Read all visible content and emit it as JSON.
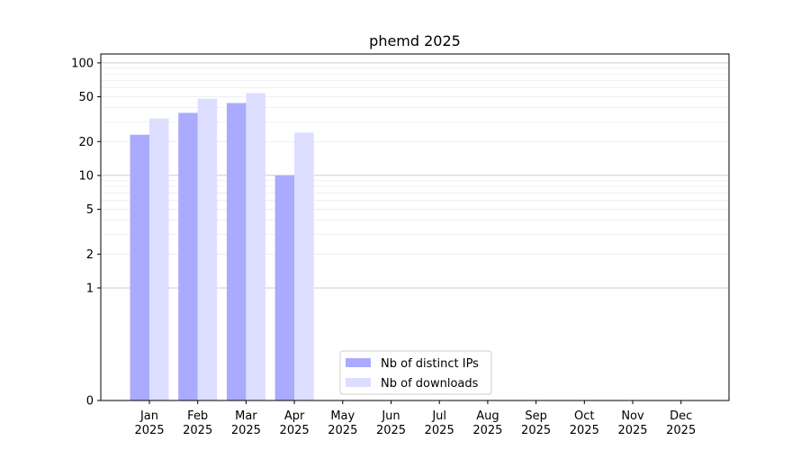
{
  "chart_data": {
    "type": "bar",
    "title": "phemd 2025",
    "xlabel": "",
    "ylabel": "",
    "yscale": "symlog",
    "ylim": [
      0,
      120
    ],
    "yticks": [
      0,
      1,
      2,
      5,
      10,
      20,
      50,
      100
    ],
    "categories": [
      {
        "month": "Jan",
        "year": "2025"
      },
      {
        "month": "Feb",
        "year": "2025"
      },
      {
        "month": "Mar",
        "year": "2025"
      },
      {
        "month": "Apr",
        "year": "2025"
      },
      {
        "month": "May",
        "year": "2025"
      },
      {
        "month": "Jun",
        "year": "2025"
      },
      {
        "month": "Jul",
        "year": "2025"
      },
      {
        "month": "Aug",
        "year": "2025"
      },
      {
        "month": "Sep",
        "year": "2025"
      },
      {
        "month": "Oct",
        "year": "2025"
      },
      {
        "month": "Nov",
        "year": "2025"
      },
      {
        "month": "Dec",
        "year": "2025"
      }
    ],
    "series": [
      {
        "name": "Nb of distinct IPs",
        "color": "#aaaaff",
        "values": [
          23,
          36,
          44,
          10,
          0,
          0,
          0,
          0,
          0,
          0,
          0,
          0
        ]
      },
      {
        "name": "Nb of downloads",
        "color": "#ddddff",
        "values": [
          32,
          48,
          54,
          24,
          0,
          0,
          0,
          0,
          0,
          0,
          0,
          0
        ]
      }
    ],
    "grid": true,
    "legend_position": "lower-center"
  }
}
